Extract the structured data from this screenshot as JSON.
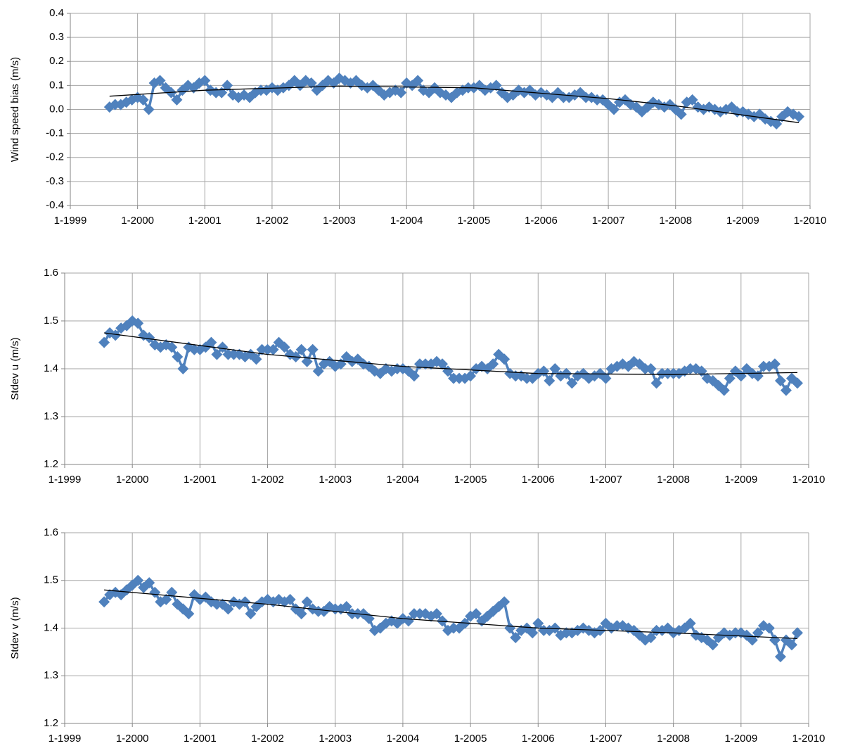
{
  "chart_data": [
    {
      "type": "line",
      "y_label": "Wind speed bias (m/s)",
      "color": "#4f81bd",
      "grid": true,
      "x": [
        "8-1999",
        "9-1999",
        "10-1999",
        "11-1999",
        "12-1999",
        "1-2000",
        "2-2000",
        "3-2000",
        "4-2000",
        "5-2000",
        "6-2000",
        "7-2000",
        "8-2000",
        "9-2000",
        "10-2000",
        "11-2000",
        "12-2000",
        "1-2001",
        "2-2001",
        "3-2001",
        "4-2001",
        "5-2001",
        "6-2001",
        "7-2001",
        "8-2001",
        "9-2001",
        "10-2001",
        "11-2001",
        "12-2001",
        "1-2002",
        "2-2002",
        "3-2002",
        "4-2002",
        "5-2002",
        "6-2002",
        "7-2002",
        "8-2002",
        "9-2002",
        "10-2002",
        "11-2002",
        "12-2002",
        "1-2003",
        "2-2003",
        "3-2003",
        "4-2003",
        "5-2003",
        "6-2003",
        "7-2003",
        "8-2003",
        "9-2003",
        "10-2003",
        "11-2003",
        "12-2003",
        "1-2004",
        "2-2004",
        "3-2004",
        "4-2004",
        "5-2004",
        "6-2004",
        "7-2004",
        "8-2004",
        "9-2004",
        "10-2004",
        "11-2004",
        "12-2004",
        "1-2005",
        "2-2005",
        "3-2005",
        "4-2005",
        "5-2005",
        "6-2005",
        "7-2005",
        "8-2005",
        "9-2005",
        "10-2005",
        "11-2005",
        "12-2005",
        "1-2006",
        "2-2006",
        "3-2006",
        "4-2006",
        "5-2006",
        "6-2006",
        "7-2006",
        "8-2006",
        "9-2006",
        "10-2006",
        "11-2006",
        "12-2006",
        "1-2007",
        "2-2007",
        "3-2007",
        "4-2007",
        "5-2007",
        "6-2007",
        "7-2007",
        "8-2007",
        "9-2007",
        "10-2007",
        "11-2007",
        "12-2007",
        "1-2008",
        "2-2008",
        "3-2008",
        "4-2008",
        "5-2008",
        "6-2008",
        "7-2008",
        "8-2008",
        "9-2008",
        "10-2008",
        "11-2008",
        "12-2008",
        "1-2009",
        "2-2009",
        "3-2009",
        "4-2009",
        "5-2009",
        "6-2009",
        "7-2009",
        "8-2009",
        "9-2009",
        "10-2009",
        "11-2009"
      ],
      "values": [
        0.01,
        0.02,
        0.02,
        0.03,
        0.04,
        0.05,
        0.04,
        0.0,
        0.11,
        0.12,
        0.09,
        0.07,
        0.04,
        0.08,
        0.1,
        0.09,
        0.11,
        0.12,
        0.08,
        0.07,
        0.07,
        0.1,
        0.06,
        0.05,
        0.06,
        0.05,
        0.07,
        0.08,
        0.08,
        0.09,
        0.08,
        0.09,
        0.1,
        0.12,
        0.1,
        0.12,
        0.11,
        0.08,
        0.1,
        0.12,
        0.11,
        0.13,
        0.12,
        0.11,
        0.12,
        0.1,
        0.09,
        0.1,
        0.08,
        0.06,
        0.07,
        0.08,
        0.07,
        0.11,
        0.1,
        0.12,
        0.08,
        0.07,
        0.09,
        0.07,
        0.06,
        0.05,
        0.07,
        0.08,
        0.09,
        0.09,
        0.1,
        0.08,
        0.09,
        0.1,
        0.07,
        0.05,
        0.06,
        0.08,
        0.07,
        0.08,
        0.06,
        0.07,
        0.06,
        0.05,
        0.07,
        0.05,
        0.05,
        0.06,
        0.07,
        0.05,
        0.05,
        0.04,
        0.04,
        0.02,
        0.0,
        0.03,
        0.04,
        0.02,
        0.01,
        -0.01,
        0.01,
        0.03,
        0.02,
        0.01,
        0.02,
        0.0,
        -0.02,
        0.03,
        0.04,
        0.01,
        0.0,
        0.01,
        0.0,
        -0.01,
        0.0,
        0.01,
        -0.01,
        -0.01,
        -0.02,
        -0.03,
        -0.02,
        -0.04,
        -0.05,
        -0.06,
        -0.03,
        -0.01,
        -0.02,
        -0.03
      ],
      "trend": {
        "color": "#000000",
        "x": [
          "8-1999",
          "1-2001",
          "1-2003",
          "1-2005",
          "1-2007",
          "1-2008",
          "11-2009"
        ],
        "values": [
          0.055,
          0.08,
          0.097,
          0.09,
          0.045,
          0.015,
          -0.055
        ]
      },
      "xlim": [
        "1-1999",
        "1-2010"
      ],
      "xticks": [
        "1-1999",
        "1-2000",
        "1-2001",
        "1-2002",
        "1-2003",
        "1-2004",
        "1-2005",
        "1-2006",
        "1-2007",
        "1-2008",
        "1-2009",
        "1-2010"
      ],
      "ylim": [
        -0.4,
        0.4
      ],
      "yticks": [
        -0.4,
        -0.3,
        -0.2,
        -0.1,
        {
          "value": 0,
          "label": "0.0"
        },
        0.1,
        0.2,
        0.3,
        0.4
      ]
    },
    {
      "type": "line",
      "y_label": "Stdev u (m/s)",
      "color": "#4f81bd",
      "grid": true,
      "x": [
        "8-1999",
        "9-1999",
        "10-1999",
        "11-1999",
        "12-1999",
        "1-2000",
        "2-2000",
        "3-2000",
        "4-2000",
        "5-2000",
        "6-2000",
        "7-2000",
        "8-2000",
        "9-2000",
        "10-2000",
        "11-2000",
        "12-2000",
        "1-2001",
        "2-2001",
        "3-2001",
        "4-2001",
        "5-2001",
        "6-2001",
        "7-2001",
        "8-2001",
        "9-2001",
        "10-2001",
        "11-2001",
        "12-2001",
        "1-2002",
        "2-2002",
        "3-2002",
        "4-2002",
        "5-2002",
        "6-2002",
        "7-2002",
        "8-2002",
        "9-2002",
        "10-2002",
        "11-2002",
        "12-2002",
        "1-2003",
        "2-2003",
        "3-2003",
        "4-2003",
        "5-2003",
        "6-2003",
        "7-2003",
        "8-2003",
        "9-2003",
        "10-2003",
        "11-2003",
        "12-2003",
        "1-2004",
        "2-2004",
        "3-2004",
        "4-2004",
        "5-2004",
        "6-2004",
        "7-2004",
        "8-2004",
        "9-2004",
        "10-2004",
        "11-2004",
        "12-2004",
        "1-2005",
        "2-2005",
        "3-2005",
        "4-2005",
        "5-2005",
        "6-2005",
        "7-2005",
        "8-2005",
        "9-2005",
        "10-2005",
        "11-2005",
        "12-2005",
        "1-2006",
        "2-2006",
        "3-2006",
        "4-2006",
        "5-2006",
        "6-2006",
        "7-2006",
        "8-2006",
        "9-2006",
        "10-2006",
        "11-2006",
        "12-2006",
        "1-2007",
        "2-2007",
        "3-2007",
        "4-2007",
        "5-2007",
        "6-2007",
        "7-2007",
        "8-2007",
        "9-2007",
        "10-2007",
        "11-2007",
        "12-2007",
        "1-2008",
        "2-2008",
        "3-2008",
        "4-2008",
        "5-2008",
        "6-2008",
        "7-2008",
        "8-2008",
        "9-2008",
        "10-2008",
        "11-2008",
        "12-2008",
        "1-2009",
        "2-2009",
        "3-2009",
        "4-2009",
        "5-2009",
        "6-2009",
        "7-2009",
        "8-2009",
        "9-2009",
        "10-2009",
        "11-2009"
      ],
      "values": [
        1.455,
        1.475,
        1.47,
        1.485,
        1.49,
        1.5,
        1.495,
        1.47,
        1.465,
        1.45,
        1.445,
        1.45,
        1.445,
        1.425,
        1.4,
        1.445,
        1.44,
        1.44,
        1.445,
        1.455,
        1.43,
        1.445,
        1.43,
        1.43,
        1.43,
        1.425,
        1.43,
        1.42,
        1.44,
        1.44,
        1.44,
        1.455,
        1.445,
        1.43,
        1.425,
        1.44,
        1.415,
        1.44,
        1.395,
        1.41,
        1.415,
        1.405,
        1.41,
        1.425,
        1.415,
        1.42,
        1.41,
        1.405,
        1.395,
        1.39,
        1.4,
        1.395,
        1.4,
        1.4,
        1.395,
        1.385,
        1.41,
        1.41,
        1.41,
        1.415,
        1.41,
        1.395,
        1.38,
        1.38,
        1.38,
        1.385,
        1.4,
        1.405,
        1.4,
        1.41,
        1.43,
        1.42,
        1.39,
        1.385,
        1.385,
        1.38,
        1.38,
        1.39,
        1.395,
        1.375,
        1.4,
        1.385,
        1.39,
        1.37,
        1.385,
        1.39,
        1.38,
        1.385,
        1.39,
        1.38,
        1.4,
        1.405,
        1.41,
        1.405,
        1.415,
        1.41,
        1.4,
        1.4,
        1.37,
        1.39,
        1.39,
        1.39,
        1.39,
        1.395,
        1.4,
        1.4,
        1.395,
        1.38,
        1.375,
        1.365,
        1.355,
        1.38,
        1.395,
        1.385,
        1.4,
        1.39,
        1.385,
        1.405,
        1.405,
        1.41,
        1.375,
        1.355,
        1.38,
        1.37
      ],
      "trend": {
        "color": "#000000",
        "x": [
          "8-1999",
          "1-2002",
          "1-2004",
          "1-2006",
          "1-2008",
          "11-2009"
        ],
        "values": [
          1.475,
          1.43,
          1.405,
          1.39,
          1.388,
          1.392
        ]
      },
      "xlim": [
        "1-1999",
        "1-2010"
      ],
      "xticks": [
        "1-1999",
        "1-2000",
        "1-2001",
        "1-2002",
        "1-2003",
        "1-2004",
        "1-2005",
        "1-2006",
        "1-2007",
        "1-2008",
        "1-2009",
        "1-2010"
      ],
      "ylim": [
        1.2,
        1.6
      ],
      "yticks": [
        1.2,
        1.3,
        1.4,
        1.5,
        1.6
      ]
    },
    {
      "type": "line",
      "y_label": "Stdev v (m/s)",
      "color": "#4f81bd",
      "grid": true,
      "x": [
        "8-1999",
        "9-1999",
        "10-1999",
        "11-1999",
        "12-1999",
        "1-2000",
        "2-2000",
        "3-2000",
        "4-2000",
        "5-2000",
        "6-2000",
        "7-2000",
        "8-2000",
        "9-2000",
        "10-2000",
        "11-2000",
        "12-2000",
        "1-2001",
        "2-2001",
        "3-2001",
        "4-2001",
        "5-2001",
        "6-2001",
        "7-2001",
        "8-2001",
        "9-2001",
        "10-2001",
        "11-2001",
        "12-2001",
        "1-2002",
        "2-2002",
        "3-2002",
        "4-2002",
        "5-2002",
        "6-2002",
        "7-2002",
        "8-2002",
        "9-2002",
        "10-2002",
        "11-2002",
        "12-2002",
        "1-2003",
        "2-2003",
        "3-2003",
        "4-2003",
        "5-2003",
        "6-2003",
        "7-2003",
        "8-2003",
        "9-2003",
        "10-2003",
        "11-2003",
        "12-2003",
        "1-2004",
        "2-2004",
        "3-2004",
        "4-2004",
        "5-2004",
        "6-2004",
        "7-2004",
        "8-2004",
        "9-2004",
        "10-2004",
        "11-2004",
        "12-2004",
        "1-2005",
        "2-2005",
        "3-2005",
        "4-2005",
        "5-2005",
        "6-2005",
        "7-2005",
        "8-2005",
        "9-2005",
        "10-2005",
        "11-2005",
        "12-2005",
        "1-2006",
        "2-2006",
        "3-2006",
        "4-2006",
        "5-2006",
        "6-2006",
        "7-2006",
        "8-2006",
        "9-2006",
        "10-2006",
        "11-2006",
        "12-2006",
        "1-2007",
        "2-2007",
        "3-2007",
        "4-2007",
        "5-2007",
        "6-2007",
        "7-2007",
        "8-2007",
        "9-2007",
        "10-2007",
        "11-2007",
        "12-2007",
        "1-2008",
        "2-2008",
        "3-2008",
        "4-2008",
        "5-2008",
        "6-2008",
        "7-2008",
        "8-2008",
        "9-2008",
        "10-2008",
        "11-2008",
        "12-2008",
        "1-2009",
        "2-2009",
        "3-2009",
        "4-2009",
        "5-2009",
        "6-2009",
        "7-2009",
        "8-2009",
        "9-2009",
        "10-2009",
        "11-2009"
      ],
      "values": [
        1.455,
        1.47,
        1.475,
        1.47,
        1.48,
        1.49,
        1.5,
        1.485,
        1.495,
        1.475,
        1.455,
        1.46,
        1.475,
        1.45,
        1.44,
        1.43,
        1.47,
        1.46,
        1.465,
        1.455,
        1.45,
        1.45,
        1.44,
        1.455,
        1.45,
        1.455,
        1.43,
        1.445,
        1.455,
        1.46,
        1.455,
        1.46,
        1.455,
        1.46,
        1.44,
        1.43,
        1.455,
        1.44,
        1.435,
        1.435,
        1.445,
        1.44,
        1.44,
        1.445,
        1.43,
        1.43,
        1.43,
        1.42,
        1.395,
        1.4,
        1.41,
        1.415,
        1.41,
        1.42,
        1.415,
        1.43,
        1.43,
        1.43,
        1.425,
        1.43,
        1.415,
        1.395,
        1.4,
        1.4,
        1.41,
        1.425,
        1.43,
        1.415,
        1.425,
        1.435,
        1.445,
        1.455,
        1.4,
        1.38,
        1.395,
        1.4,
        1.39,
        1.41,
        1.395,
        1.395,
        1.4,
        1.385,
        1.39,
        1.39,
        1.395,
        1.4,
        1.395,
        1.39,
        1.395,
        1.41,
        1.4,
        1.405,
        1.405,
        1.4,
        1.395,
        1.385,
        1.375,
        1.38,
        1.395,
        1.395,
        1.4,
        1.39,
        1.395,
        1.4,
        1.41,
        1.385,
        1.38,
        1.375,
        1.365,
        1.38,
        1.39,
        1.385,
        1.39,
        1.39,
        1.385,
        1.375,
        1.39,
        1.405,
        1.4,
        1.375,
        1.34,
        1.375,
        1.365,
        1.39
      ],
      "trend": {
        "color": "#000000",
        "x": [
          "8-1999",
          "1-2002",
          "1-2004",
          "1-2006",
          "1-2008",
          "11-2009"
        ],
        "values": [
          1.48,
          1.45,
          1.42,
          1.4,
          1.39,
          1.378
        ]
      },
      "xlim": [
        "1-1999",
        "1-2010"
      ],
      "xticks": [
        "1-1999",
        "1-2000",
        "1-2001",
        "1-2002",
        "1-2003",
        "1-2004",
        "1-2005",
        "1-2006",
        "1-2007",
        "1-2008",
        "1-2009",
        "1-2010"
      ],
      "ylim": [
        1.2,
        1.6
      ],
      "yticks": [
        1.2,
        1.3,
        1.4,
        1.5,
        1.6
      ]
    }
  ]
}
